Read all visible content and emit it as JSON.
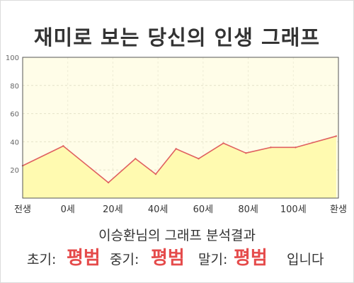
{
  "title": "재미로 보는 당신의 인생 그래프",
  "summary": "이승환님의 그래프 분석결과",
  "verdict": {
    "early_label": "초기:",
    "early_value": "평범",
    "mid_label": "중기:",
    "mid_value": "평범",
    "late_label": "말기:",
    "late_value": "평범",
    "suffix": "입니다"
  },
  "colors": {
    "plot_bg": "#fffde8",
    "area_fill": "#fffab0",
    "line": "#e06060",
    "accent": "#e54b4b",
    "text": "#333333"
  },
  "chart_data": {
    "type": "area",
    "title": "",
    "xlabel": "",
    "ylabel": "",
    "ylim": [
      0,
      100
    ],
    "yticks": [
      20,
      40,
      60,
      80,
      100
    ],
    "grid": true,
    "legend": "none",
    "categories": [
      "전생",
      "0세",
      "20세",
      "40세",
      "60세",
      "80세",
      "100세",
      "환생"
    ],
    "series": [
      {
        "x": [
          0,
          0.9,
          1.9,
          2.5,
          2.95,
          3.4,
          3.9,
          4.45,
          4.95,
          5.5,
          6.05,
          6.95
        ],
        "values": [
          23,
          37,
          11,
          28,
          17,
          35,
          28,
          39,
          32,
          36,
          36,
          44
        ]
      }
    ]
  }
}
